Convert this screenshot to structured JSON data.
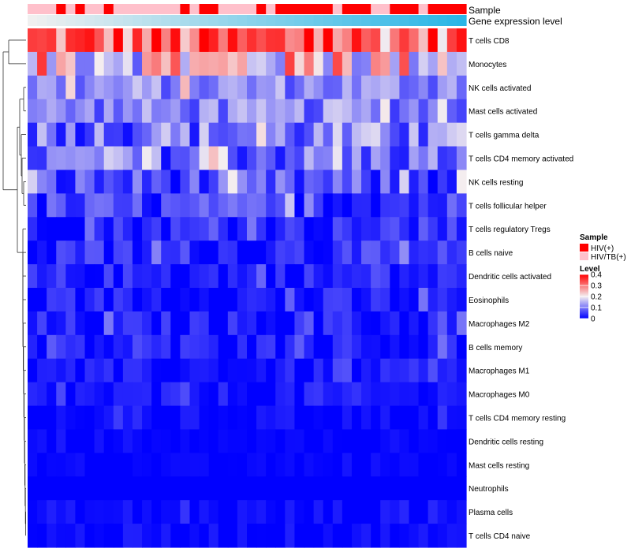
{
  "chart_data": {
    "type": "heatmap",
    "title": "",
    "annotation_labels": [
      "Sample",
      "Gene expression level"
    ],
    "rows": [
      "T cells CD8",
      "Monocytes",
      "NK cells activated",
      "Mast cells activated",
      "T cells gamma delta",
      "T cells CD4 memory activated",
      "NK cells resting",
      "T cells follicular helper",
      "T cells regulatory  Tregs",
      "B cells naive",
      "Dendritic cells activated",
      "Eosinophils",
      "Macrophages M2",
      "B cells memory",
      "Macrophages M1",
      "Macrophages M0",
      "T cells CD4 memory resting",
      "Dendritic cells resting",
      "Mast cells resting",
      "Neutrophils",
      "Plasma cells",
      "T cells CD4 naive"
    ],
    "n_samples": 46,
    "sample_groups": [
      "HIV/TB(+)",
      "HIV/TB(+)",
      "HIV/TB(+)",
      "HIV(+)",
      "HIV/TB(+)",
      "HIV(+)",
      "HIV/TB(+)",
      "HIV/TB(+)",
      "HIV(+)",
      "HIV/TB(+)",
      "HIV/TB(+)",
      "HIV/TB(+)",
      "HIV/TB(+)",
      "HIV/TB(+)",
      "HIV/TB(+)",
      "HIV/TB(+)",
      "HIV(+)",
      "HIV/TB(+)",
      "HIV(+)",
      "HIV(+)",
      "HIV/TB(+)",
      "HIV/TB(+)",
      "HIV/TB(+)",
      "HIV/TB(+)",
      "HIV(+)",
      "HIV/TB(+)",
      "HIV(+)",
      "HIV(+)",
      "HIV(+)",
      "HIV(+)",
      "HIV(+)",
      "HIV(+)",
      "HIV/TB(+)",
      "HIV(+)",
      "HIV(+)",
      "HIV(+)",
      "HIV/TB(+)",
      "HIV/TB(+)",
      "HIV(+)",
      "HIV(+)",
      "HIV(+)",
      "HIV/TB(+)",
      "HIV(+)",
      "HIV(+)",
      "HIV(+)",
      "HIV(+)"
    ],
    "expression_level_gradient": {
      "start": "#f0f0f0",
      "end": "#29b6e6"
    },
    "row_base_level": [
      0.3,
      0.2,
      0.11,
      0.1,
      0.09,
      0.08,
      0.05,
      0.04,
      0.03,
      0.025,
      0.02,
      0.015,
      0.015,
      0.015,
      0.01,
      0.01,
      0.005,
      0.0,
      0.0,
      0.0,
      0.005,
      0.005
    ],
    "row_variation": [
      0.12,
      0.14,
      0.06,
      0.06,
      0.09,
      0.08,
      0.07,
      0.06,
      0.04,
      0.05,
      0.04,
      0.04,
      0.04,
      0.04,
      0.03,
      0.03,
      0.02,
      0.01,
      0.01,
      0.0,
      0.02,
      0.02
    ],
    "color_scale": {
      "title": "Level",
      "ticks": [
        "0.4",
        "0.3",
        "0.2",
        "0.1",
        "0"
      ],
      "tick_values": [
        0.4,
        0.3,
        0.2,
        0.1,
        0
      ],
      "range": [
        0,
        0.4
      ],
      "low_color": "#0000ff",
      "mid_color": "#f4eef0",
      "high_color": "#ff0000",
      "mid_value": 0.2
    },
    "legend": {
      "title": "Sample",
      "entries": [
        {
          "label": "HIV(+)",
          "color": "#ff0000"
        },
        {
          "label": "HIV/TB(+)",
          "color": "#ffc0cb"
        }
      ]
    }
  }
}
